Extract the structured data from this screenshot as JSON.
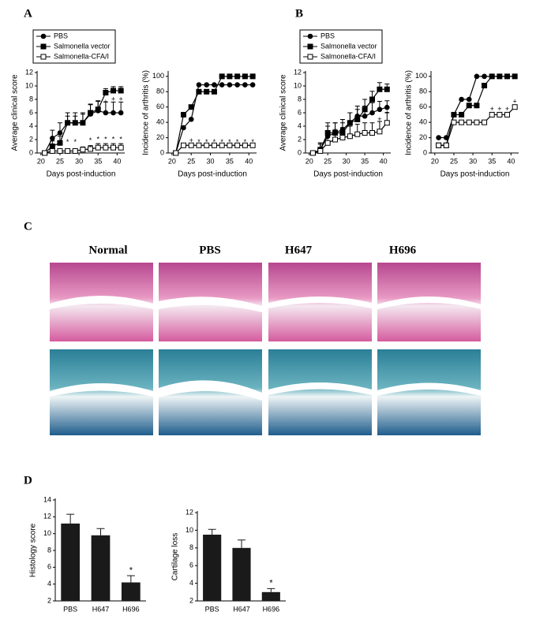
{
  "panel_labels": [
    "A",
    "B",
    "C",
    "D"
  ],
  "histology": {
    "columns": [
      "Normal",
      "PBS",
      "H647",
      "H696"
    ]
  },
  "chart_data": [
    {
      "type": "line",
      "xlabel": "Days post-induction",
      "ylabel": "Average clinical score",
      "legend": "upper left",
      "x": [
        21,
        23,
        25,
        27,
        29,
        31,
        33,
        35,
        37,
        39,
        41
      ],
      "xlim": [
        19,
        42
      ],
      "xticks": [
        20,
        25,
        30,
        35,
        40
      ],
      "ylim": [
        0,
        12
      ],
      "yticks": [
        0,
        2,
        4,
        6,
        8,
        10,
        12
      ],
      "series": [
        {
          "name": "PBS",
          "marker": "circle",
          "color": "#000000",
          "values": [
            0,
            2.2,
            3,
            4.5,
            4.5,
            4.5,
            5.8,
            6.3,
            6,
            6,
            6
          ],
          "errors": [
            0,
            1.2,
            1.5,
            1.5,
            1.5,
            1.5,
            1.5,
            1.5,
            1.6,
            1.6,
            1.6
          ]
        },
        {
          "name": "Salmonella vector",
          "marker": "square",
          "color": "#000000",
          "values": [
            0,
            1,
            1.5,
            4.5,
            4.5,
            4.5,
            6,
            6.5,
            9,
            9.3,
            9.3
          ],
          "errors": [
            0,
            0.8,
            1,
            1,
            1,
            1.3,
            1.2,
            1.2,
            0.6,
            0.6,
            0.6
          ]
        },
        {
          "name": "Salmonella-CFA/I",
          "marker": "open-square",
          "color": "#000000",
          "values": [
            0,
            0.3,
            0.3,
            0.3,
            0.3,
            0.5,
            0.6,
            0.8,
            0.8,
            0.8,
            0.8
          ],
          "errors": [
            0,
            0.2,
            0.2,
            0.2,
            0.3,
            0.4,
            0.5,
            0.6,
            0.6,
            0.6,
            0.6
          ]
        }
      ],
      "annotations": [
        {
          "text": "*",
          "x": 27,
          "y": 1.6
        },
        {
          "text": "*",
          "x": 29,
          "y": 1.6
        },
        {
          "text": "*",
          "x": 33,
          "y": 1.8
        },
        {
          "text": "*",
          "x": 35,
          "y": 2
        },
        {
          "text": "*",
          "x": 37,
          "y": 2
        },
        {
          "text": "*",
          "x": 39,
          "y": 2
        },
        {
          "text": "*",
          "x": 41,
          "y": 2
        },
        {
          "text": "+",
          "x": 37,
          "y": 7.6
        },
        {
          "text": "+",
          "x": 39,
          "y": 8
        },
        {
          "text": "+",
          "x": 41,
          "y": 8
        }
      ]
    },
    {
      "type": "line",
      "xlabel": "Days post-induction",
      "ylabel": "Incidence of arthritis (%)",
      "x": [
        21,
        23,
        25,
        27,
        29,
        31,
        33,
        35,
        37,
        39,
        41
      ],
      "xlim": [
        19,
        42
      ],
      "xticks": [
        20,
        25,
        30,
        35,
        40
      ],
      "ylim": [
        0,
        105
      ],
      "yticks": [
        0,
        20,
        40,
        60,
        80,
        100
      ],
      "series": [
        {
          "name": "PBS",
          "marker": "circle",
          "color": "#000000",
          "values": [
            0,
            33,
            44,
            89,
            89,
            89,
            89,
            89,
            89,
            89,
            89
          ]
        },
        {
          "name": "Salmonella vector",
          "marker": "square",
          "color": "#000000",
          "values": [
            0,
            50,
            60,
            80,
            80,
            80,
            100,
            100,
            100,
            100,
            100
          ]
        },
        {
          "name": "Salmonella-CFA/I",
          "marker": "open-square",
          "color": "#000000",
          "values": [
            0,
            10,
            10,
            10,
            10,
            10,
            10,
            10,
            10,
            10,
            10
          ]
        }
      ],
      "annotations": [
        {
          "text": "+",
          "x": 25,
          "y": 16
        },
        {
          "text": "*",
          "x": 27,
          "y": 14
        },
        {
          "text": "*",
          "x": 29,
          "y": 14
        },
        {
          "text": "*",
          "x": 31,
          "y": 14
        },
        {
          "text": "*",
          "x": 33,
          "y": 14
        },
        {
          "text": "*",
          "x": 35,
          "y": 14
        },
        {
          "text": "*",
          "x": 37,
          "y": 14
        },
        {
          "text": "*",
          "x": 39,
          "y": 14
        },
        {
          "text": "*",
          "x": 41,
          "y": 14
        }
      ]
    },
    {
      "type": "line",
      "xlabel": "Days post-induction",
      "ylabel": "Average clinical score",
      "legend": "upper left",
      "x": [
        21,
        23,
        25,
        27,
        29,
        31,
        33,
        35,
        37,
        39,
        41
      ],
      "xlim": [
        19,
        42
      ],
      "xticks": [
        20,
        25,
        30,
        35,
        40
      ],
      "ylim": [
        0,
        12
      ],
      "yticks": [
        0,
        2,
        4,
        6,
        8,
        10,
        12
      ],
      "series": [
        {
          "name": "PBS",
          "marker": "circle",
          "color": "#000000",
          "values": [
            0,
            0.5,
            2.5,
            3,
            3.5,
            4.5,
            5.5,
            5.5,
            6,
            6.5,
            6.8
          ],
          "errors": [
            0,
            1,
            1.5,
            1.5,
            1.5,
            1.5,
            1.5,
            1.5,
            1.5,
            1.2,
            1
          ]
        },
        {
          "name": "Salmonella vector",
          "marker": "square",
          "color": "#000000",
          "values": [
            0,
            0.5,
            3,
            3,
            3,
            4.5,
            5,
            6.5,
            8,
            9.5,
            9.5
          ],
          "errors": [
            0,
            1,
            1.5,
            1.5,
            1.5,
            1.5,
            1.5,
            1.5,
            1.2,
            1,
            0.8
          ]
        },
        {
          "name": "Salmonella-CFA/I",
          "marker": "open-square",
          "color": "#000000",
          "values": [
            0,
            0.3,
            1.5,
            2,
            2.3,
            2.5,
            2.8,
            3,
            3,
            3.2,
            4.5
          ],
          "errors": [
            0,
            1,
            1.5,
            1.5,
            1.5,
            1.5,
            1.5,
            1.5,
            1.5,
            1.5,
            1.5
          ]
        }
      ],
      "annotations": [
        {
          "text": "+",
          "x": 39,
          "y": 5
        },
        {
          "text": "+",
          "x": 41,
          "y": 6
        }
      ]
    },
    {
      "type": "line",
      "xlabel": "Days post-induction",
      "ylabel": "Incidence of arthritis (%)",
      "x": [
        21,
        23,
        25,
        27,
        29,
        31,
        33,
        35,
        37,
        39,
        41
      ],
      "xlim": [
        19,
        42
      ],
      "xticks": [
        20,
        25,
        30,
        35,
        40
      ],
      "ylim": [
        0,
        105
      ],
      "yticks": [
        0,
        20,
        40,
        60,
        80,
        100
      ],
      "series": [
        {
          "name": "PBS",
          "marker": "circle",
          "color": "#000000",
          "values": [
            20,
            20,
            50,
            70,
            70,
            100,
            100,
            100,
            100,
            100,
            100
          ]
        },
        {
          "name": "Salmonella vector",
          "marker": "square",
          "color": "#000000",
          "values": [
            10,
            10,
            50,
            50,
            62,
            62,
            88,
            100,
            100,
            100,
            100
          ]
        },
        {
          "name": "Salmonella-CFA/I",
          "marker": "open-square",
          "color": "#000000",
          "values": [
            10,
            10,
            40,
            40,
            40,
            40,
            40,
            50,
            50,
            50,
            60
          ]
        }
      ],
      "annotations": [
        {
          "text": "+",
          "x": 35,
          "y": 57
        },
        {
          "text": "+",
          "x": 37,
          "y": 57
        },
        {
          "text": "+",
          "x": 39,
          "y": 57
        },
        {
          "text": "+",
          "x": 41,
          "y": 67
        }
      ]
    },
    {
      "type": "bar",
      "ylabel": "Histology score",
      "color": "#1a1a1a",
      "categories": [
        "PBS",
        "H647",
        "H696"
      ],
      "values": [
        11.2,
        9.8,
        4.2
      ],
      "errors": [
        1.1,
        0.8,
        0.8
      ],
      "ylim": [
        2,
        14
      ],
      "yticks": [
        2,
        4,
        6,
        8,
        10,
        12,
        14
      ],
      "annotations": [
        {
          "text": "*",
          "category": 2,
          "y": 5.6
        }
      ]
    },
    {
      "type": "bar",
      "ylabel": "Cartilage loss",
      "color": "#1a1a1a",
      "categories": [
        "PBS",
        "H647",
        "H696"
      ],
      "values": [
        9.5,
        8,
        3
      ],
      "errors": [
        0.6,
        0.9,
        0.4
      ],
      "ylim": [
        2,
        12
      ],
      "yticks": [
        2,
        4,
        6,
        8,
        10,
        12
      ],
      "annotations": [
        {
          "text": "*",
          "category": 2,
          "y": 4
        }
      ]
    }
  ]
}
